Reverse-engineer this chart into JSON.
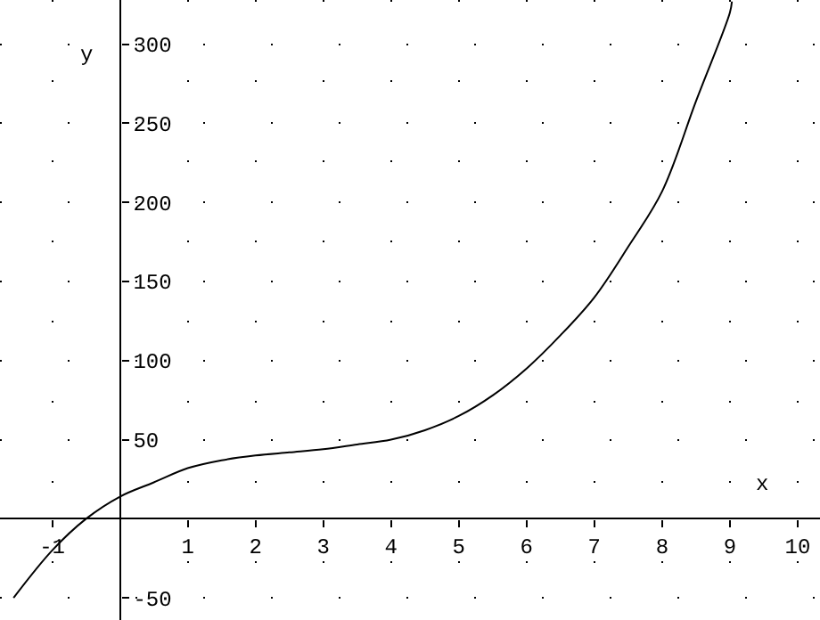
{
  "chart_data": {
    "type": "line",
    "xlabel": "x",
    "ylabel": "y",
    "x": [
      -1.57,
      -1,
      -0.5,
      0,
      0.5,
      1,
      1.5,
      2,
      2.5,
      3,
      3.5,
      4,
      4.5,
      5,
      5.5,
      6,
      6.5,
      7,
      7.5,
      8,
      8.5,
      9,
      9.03
    ],
    "series": [
      {
        "color": "#000000",
        "values": [
          -50,
          -20,
          0,
          14,
          23,
          32,
          37,
          40,
          42,
          44,
          47,
          50,
          56,
          65,
          78,
          95,
          116,
          140,
          172,
          207,
          264,
          320,
          327
        ]
      }
    ],
    "xlim": [
      -1.77,
      10.33
    ],
    "ylim": [
      -64,
      328
    ],
    "xticks": [
      -1,
      1,
      2,
      3,
      4,
      5,
      6,
      7,
      8,
      9,
      10
    ],
    "yticks": [
      -50,
      50,
      100,
      150,
      200,
      250,
      300
    ],
    "grid": true,
    "marker": "none",
    "line_style": "solid"
  }
}
